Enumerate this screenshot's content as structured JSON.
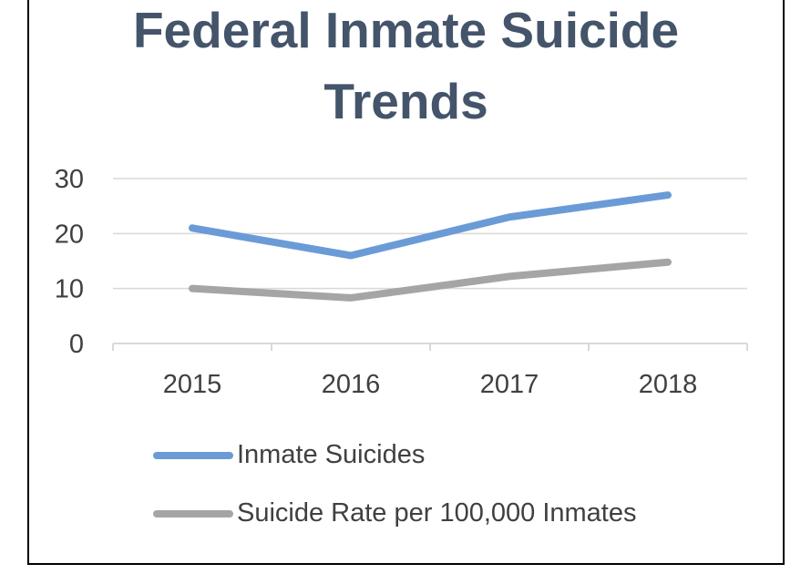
{
  "chart_data": {
    "type": "line",
    "title": "Federal Inmate Suicide Trends",
    "title_lines": [
      "Federal Inmate Suicide",
      "Trends"
    ],
    "categories": [
      "2015",
      "2016",
      "2017",
      "2018"
    ],
    "series": [
      {
        "name": "Inmate Suicides",
        "color": "#6a9bd6",
        "values": [
          21,
          16,
          23,
          27
        ]
      },
      {
        "name": "Suicide Rate per 100,000 Inmates",
        "color": "#a5a5a5",
        "values": [
          10,
          8.3,
          12.2,
          14.8
        ]
      }
    ],
    "ylim": [
      0,
      30
    ],
    "yticks": [
      "0",
      "10",
      "20",
      "30"
    ],
    "xlabel": "",
    "ylabel": "",
    "grid": true,
    "legend": "bottom"
  },
  "colors": {
    "title": "#44546a",
    "gridline": "#d9d9d9",
    "axis": "#d9d9d9",
    "text": "#404040"
  }
}
